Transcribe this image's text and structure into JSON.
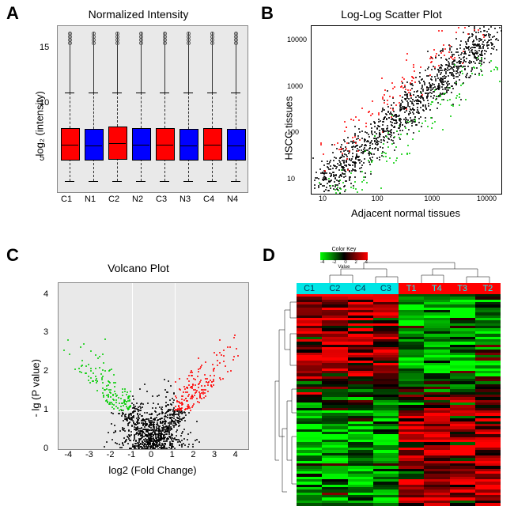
{
  "panelA": {
    "label": "A",
    "title": "Normalized Intensity",
    "ylabel": "log₂ (intensity)",
    "categories": [
      "C1",
      "N1",
      "C2",
      "N2",
      "C3",
      "N3",
      "C4",
      "N4"
    ],
    "colors": [
      "#ff0000",
      "#0000ff",
      "#ff0000",
      "#0000ff",
      "#ff0000",
      "#0000ff",
      "#ff0000",
      "#0000ff"
    ],
    "ylim": [
      2,
      17
    ],
    "yticks": [
      5,
      10,
      15
    ],
    "q1": [
      5.0,
      5.0,
      5.1,
      5.0,
      5.0,
      5.0,
      5.0,
      5.0
    ],
    "median": [
      6.3,
      6.2,
      6.4,
      6.3,
      6.3,
      6.2,
      6.3,
      6.2
    ],
    "q3": [
      7.8,
      7.7,
      7.9,
      7.8,
      7.8,
      7.7,
      7.8,
      7.7
    ],
    "whisker_low": [
      3.0,
      3.0,
      3.0,
      3.0,
      3.0,
      3.0,
      3.0,
      3.0
    ],
    "whisker_high": [
      11.0,
      11.0,
      11.0,
      11.0,
      11.0,
      11.0,
      11.0,
      11.0
    ],
    "outlier_top": 16.5,
    "background": "#e9e9e9"
  },
  "panelB": {
    "label": "B",
    "title": "Log-Log Scatter Plot",
    "ylabel": "HSCC tissues",
    "xlabel": "Adjacent normal tissues",
    "xticks": [
      "10",
      "100",
      "1000",
      "10000"
    ],
    "yticks": [
      "10",
      "100",
      "1000",
      "10000"
    ],
    "colors": {
      "up": "#ff0000",
      "down": "#00cc00",
      "ns": "#000000"
    },
    "n_points": 1400,
    "pt_size": 2
  },
  "panelC": {
    "label": "C",
    "title": "Volcano Plot",
    "ylabel": "- lg (P value)",
    "xlabel": "log2 (Fold Change)",
    "xlim": [
      -4.5,
      4.5
    ],
    "ylim": [
      0,
      4.3
    ],
    "xticks": [
      -4,
      -3,
      -2,
      -1,
      0,
      1,
      2,
      3,
      4
    ],
    "yticks": [
      0,
      1,
      2,
      3,
      4
    ],
    "thresh_x": [
      -1,
      1
    ],
    "thresh_y": 1,
    "colors": {
      "left": "#00cc00",
      "right": "#ff0000",
      "ns": "#000000"
    },
    "n_points": 1200,
    "pt_size": 2,
    "background": "#e9e9e9"
  },
  "panelD": {
    "label": "D",
    "columns": [
      "C1",
      "C2",
      "C4",
      "C3",
      "T1",
      "T4",
      "T3",
      "T2"
    ],
    "header_bg": [
      "#00e5e5",
      "#00e5e5",
      "#00e5e5",
      "#00e5e5",
      "#ff0000",
      "#ff0000",
      "#ff0000",
      "#ff0000"
    ],
    "header_text_color": "#00ffff",
    "colorkey_label": "Color Key",
    "colorkey_value": "Value",
    "colorkey_ticks": [
      "-4",
      "-2",
      "0",
      "2",
      "4"
    ],
    "n_rows": 80,
    "palette_low": "#00ff00",
    "palette_mid": "#000000",
    "palette_high": "#ff0000"
  }
}
